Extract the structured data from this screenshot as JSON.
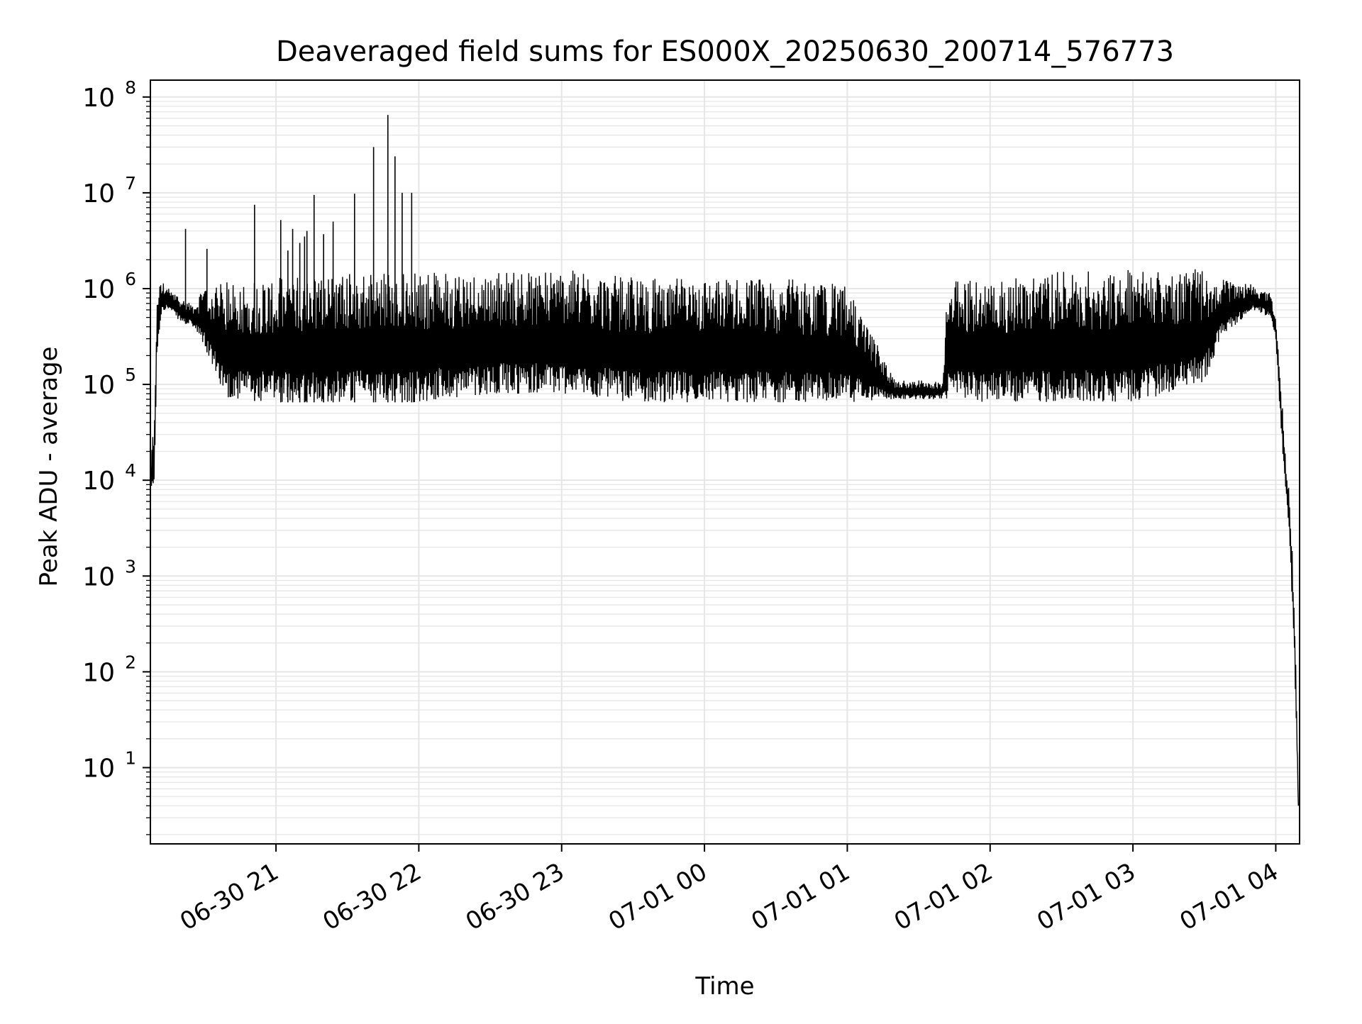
{
  "chart_data": {
    "type": "line",
    "title": "Deaveraged field sums for ES000X_20250630_200714_576773",
    "xlabel": "Time",
    "ylabel": "Peak ADU - average",
    "yscale": "log",
    "ylim": [
      1.6,
      150000000
    ],
    "xlim": [
      "2025-06-30 20:07:14",
      "2025-07-01 04:10:00"
    ],
    "grid": true,
    "line_color": "#000000",
    "grid_color": "#e6e6e6",
    "x_ticks": [
      {
        "value": "2025-06-30 21:00",
        "label": "06-30 21"
      },
      {
        "value": "2025-06-30 22:00",
        "label": "06-30 22"
      },
      {
        "value": "2025-06-30 23:00",
        "label": "06-30 23"
      },
      {
        "value": "2025-07-01 00:00",
        "label": "07-01 00"
      },
      {
        "value": "2025-07-01 01:00",
        "label": "07-01 01"
      },
      {
        "value": "2025-07-01 02:00",
        "label": "07-01 02"
      },
      {
        "value": "2025-07-01 03:00",
        "label": "07-01 03"
      },
      {
        "value": "2025-07-01 04:00",
        "label": "07-01 04"
      }
    ],
    "y_ticks": [
      {
        "value": 10,
        "base": "10",
        "exp": "1"
      },
      {
        "value": 100,
        "base": "10",
        "exp": "2"
      },
      {
        "value": 1000,
        "base": "10",
        "exp": "3"
      },
      {
        "value": 10000,
        "base": "10",
        "exp": "4"
      },
      {
        "value": 100000,
        "base": "10",
        "exp": "5"
      },
      {
        "value": 1000000,
        "base": "10",
        "exp": "6"
      },
      {
        "value": 10000000,
        "base": "10",
        "exp": "7"
      },
      {
        "value": 100000000,
        "base": "10",
        "exp": "8"
      }
    ],
    "series": [
      {
        "envelope": [
          [
            "2025-06-30 20:07:30",
            6000,
            20000
          ],
          [
            "2025-06-30 20:09:00",
            10000,
            50000
          ],
          [
            "2025-06-30 20:10:00",
            200000,
            1000000
          ],
          [
            "2025-06-30 20:12:00",
            600000,
            1200000
          ],
          [
            "2025-06-30 20:15:00",
            600000,
            1000000
          ],
          [
            "2025-06-30 20:20:00",
            450000,
            800000
          ],
          [
            "2025-06-30 20:25:00",
            400000,
            700000
          ],
          [
            "2025-06-30 20:30:00",
            250000,
            1000000
          ],
          [
            "2025-06-30 20:35:00",
            120000,
            1100000
          ],
          [
            "2025-06-30 20:40:00",
            70000,
            1200000
          ],
          [
            "2025-06-30 21:00:00",
            65000,
            1300000
          ],
          [
            "2025-06-30 21:30:00",
            65000,
            1500000
          ],
          [
            "2025-06-30 22:00:00",
            65000,
            1500000
          ],
          [
            "2025-06-30 22:30:00",
            80000,
            1500000
          ],
          [
            "2025-06-30 23:00:00",
            80000,
            1600000
          ],
          [
            "2025-06-30 23:30:00",
            65000,
            1300000
          ],
          [
            "2025-07-01 00:00:00",
            65000,
            1300000
          ],
          [
            "2025-07-01 00:30:00",
            65000,
            1300000
          ],
          [
            "2025-07-01 01:00:00",
            65000,
            1100000
          ],
          [
            "2025-07-01 01:20:00",
            70000,
            110000
          ],
          [
            "2025-07-01 01:40:00",
            70000,
            110000
          ],
          [
            "2025-07-01 01:42:00",
            70000,
            1200000
          ],
          [
            "2025-07-01 02:00:00",
            65000,
            1300000
          ],
          [
            "2025-07-01 02:30:00",
            65000,
            1500000
          ],
          [
            "2025-07-01 03:00:00",
            65000,
            1600000
          ],
          [
            "2025-07-01 03:30:00",
            100000,
            1600000
          ],
          [
            "2025-07-01 03:37:00",
            300000,
            1300000
          ],
          [
            "2025-07-01 03:50:00",
            600000,
            1100000
          ],
          [
            "2025-07-01 03:58:00",
            500000,
            900000
          ],
          [
            "2025-07-01 04:00:00",
            300000,
            500000
          ],
          [
            "2025-07-01 04:02:00",
            40000,
            120000
          ],
          [
            "2025-07-01 04:04:00",
            8000,
            20000
          ],
          [
            "2025-07-01 04:06:00",
            2000,
            6000
          ],
          [
            "2025-07-01 04:08:00",
            100,
            500
          ],
          [
            "2025-07-01 04:09:30",
            4,
            4
          ]
        ],
        "spikes": [
          [
            "2025-06-30 20:22:00",
            4200000
          ],
          [
            "2025-06-30 20:31:00",
            2600000
          ],
          [
            "2025-06-30 20:51:00",
            7500000
          ],
          [
            "2025-06-30 21:02:00",
            5200000
          ],
          [
            "2025-06-30 21:05:00",
            2500000
          ],
          [
            "2025-06-30 21:07:00",
            4200000
          ],
          [
            "2025-06-30 21:10:00",
            3000000
          ],
          [
            "2025-06-30 21:12:00",
            3500000
          ],
          [
            "2025-06-30 21:13:00",
            4000000
          ],
          [
            "2025-06-30 21:16:00",
            9500000
          ],
          [
            "2025-06-30 21:20:00",
            3700000
          ],
          [
            "2025-06-30 21:24:00",
            5000000
          ],
          [
            "2025-06-30 21:33:00",
            9800000
          ],
          [
            "2025-06-30 21:41:00",
            30000000
          ],
          [
            "2025-06-30 21:47:00",
            65000000
          ],
          [
            "2025-06-30 21:50:00",
            24000000
          ],
          [
            "2025-06-30 21:53:00",
            10000000
          ],
          [
            "2025-06-30 21:57:00",
            10000000
          ]
        ]
      }
    ]
  }
}
